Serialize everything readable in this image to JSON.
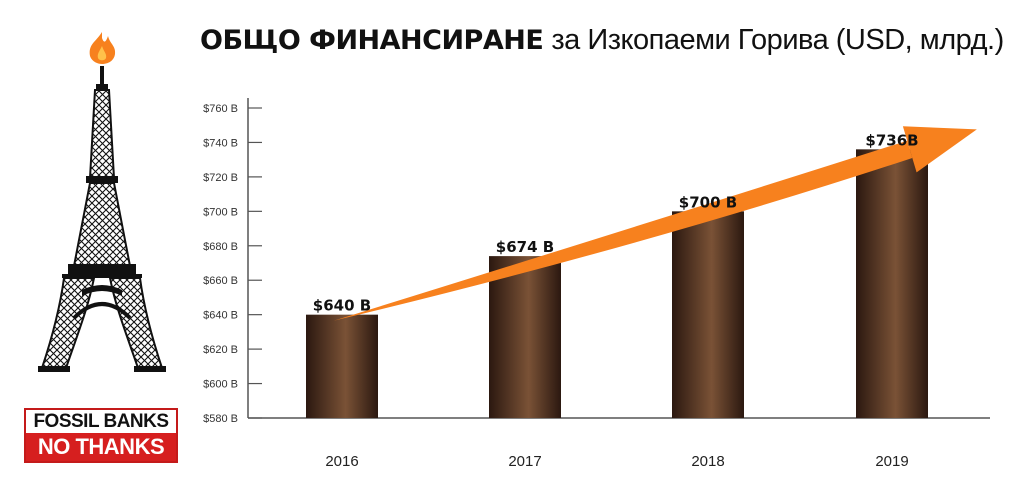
{
  "title": {
    "bold": "ОБЩО ФИНАНСИРАНЕ",
    "light": "за Изкопаеми Горива (USD, млрд.)"
  },
  "badge": {
    "line1": "FOSSIL BANKS",
    "line2": "NO THANKS"
  },
  "colors": {
    "bar_dark": "#2b1810",
    "bar_light": "#7a5236",
    "arrow": "#f7811e",
    "flame": "#f7811e",
    "badge_red": "#d61f1f"
  },
  "chart_data": {
    "type": "bar",
    "categories": [
      "2016",
      "2017",
      "2018",
      "2019"
    ],
    "values": [
      640,
      674,
      700,
      736
    ],
    "data_labels": [
      "$640 B",
      "$674 B",
      "$700 B",
      "$736B"
    ],
    "ylim": [
      580,
      760
    ],
    "yticks": [
      760,
      740,
      720,
      700,
      680,
      660,
      640,
      620,
      600,
      580
    ],
    "ytick_labels": [
      "$760 B",
      "$740 B",
      "$720 B",
      "$700 B",
      "$680 B",
      "$660 B",
      "$640 B",
      "$620 B",
      "$600 B",
      "$580 B"
    ],
    "trend_arrow": true,
    "grid": false
  }
}
